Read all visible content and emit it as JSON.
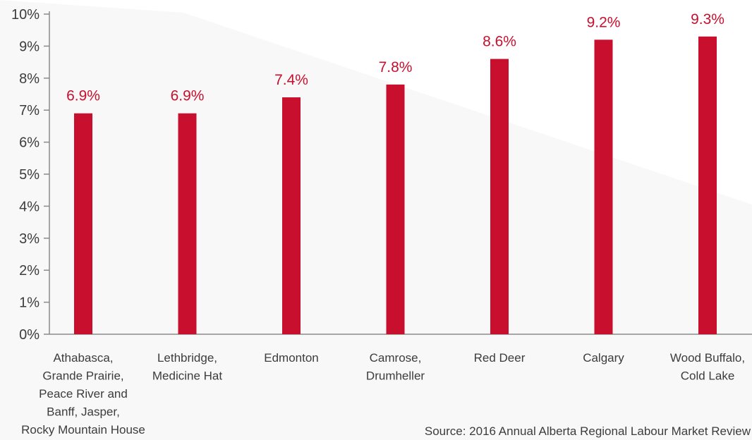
{
  "chart_data": {
    "type": "bar",
    "categories": [
      [
        "Athabasca,",
        "Grande Prairie,",
        "Peace River and",
        "Banff, Jasper,",
        "Rocky Mountain House"
      ],
      [
        "Lethbridge,",
        "Medicine Hat"
      ],
      [
        "Edmonton"
      ],
      [
        "Camrose,",
        "Drumheller"
      ],
      [
        "Red Deer"
      ],
      [
        "Calgary"
      ],
      [
        "Wood Buffalo,",
        "Cold Lake"
      ]
    ],
    "values": [
      6.9,
      6.9,
      7.4,
      7.8,
      8.6,
      9.2,
      9.3
    ],
    "data_labels": [
      "6.9%",
      "6.9%",
      "7.4%",
      "7.8%",
      "8.6%",
      "9.2%",
      "9.3%"
    ],
    "y_ticks": [
      "0%",
      "1%",
      "2%",
      "3%",
      "4%",
      "5%",
      "6%",
      "7%",
      "8%",
      "9%",
      "10%"
    ],
    "ylim": [
      0,
      10
    ],
    "grid": false,
    "title": "",
    "xlabel": "",
    "ylabel": ""
  },
  "colors": {
    "bar": "#c8102e",
    "data_label": "#c8102e",
    "axis": "#8a8a8a",
    "background_shape": "#f2f2f3"
  },
  "source": "Source: 2016 Annual Alberta Regional Labour Market Review"
}
